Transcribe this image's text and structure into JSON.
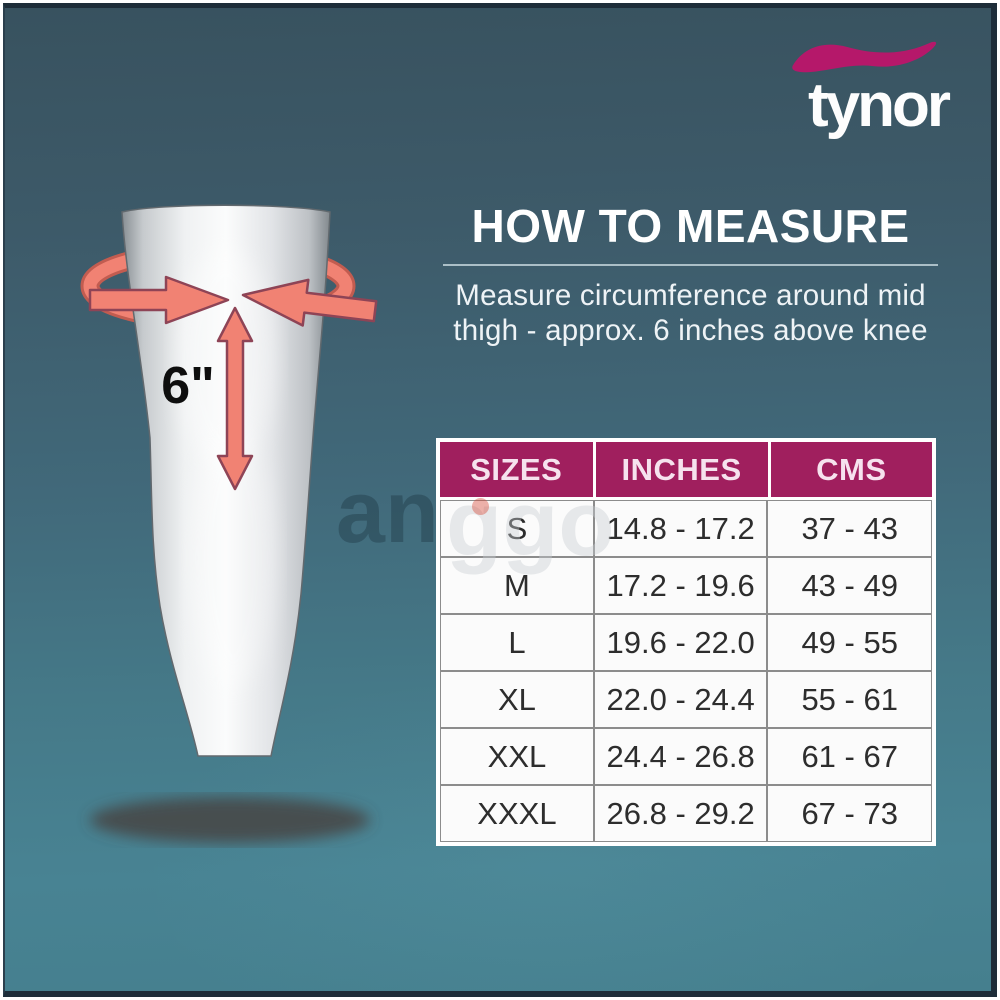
{
  "brand": {
    "name": "tynor",
    "swoosh_color": "#b5186a"
  },
  "instructions": {
    "title": "HOW TO MEASURE",
    "line1": "Measure circumference around mid",
    "line2": "thigh - approx. 6 inches above knee"
  },
  "illustration": {
    "measurement_label": "6\"",
    "arrow_color": "#f18273",
    "arrow_outline": "#8e4456",
    "band_color": "#ef8070"
  },
  "size_chart": {
    "columns": [
      "SIZES",
      "INCHES",
      "CMS"
    ],
    "rows": [
      [
        "S",
        "14.8 - 17.2",
        "37 - 43"
      ],
      [
        "M",
        "17.2 - 19.6",
        "43 - 49"
      ],
      [
        "L",
        "19.6 - 22.0",
        "49 - 55"
      ],
      [
        "XL",
        "22.0 - 24.4",
        "55 - 61"
      ],
      [
        "XXL",
        "24.4 - 26.8",
        "61 - 67"
      ],
      [
        "XXXL",
        "26.8 - 29.2",
        "67 - 73"
      ]
    ],
    "header_bg": "#a01f5e"
  },
  "watermark": {
    "left": "an",
    "right": "ggo"
  },
  "chart_data": {
    "type": "table",
    "title": "HOW TO MEASURE",
    "columns": [
      "SIZES",
      "INCHES",
      "CMS"
    ],
    "rows": [
      [
        "S",
        "14.8 - 17.2",
        "37 - 43"
      ],
      [
        "M",
        "17.2 - 19.6",
        "43 - 49"
      ],
      [
        "L",
        "19.6 - 22.0",
        "49 - 55"
      ],
      [
        "XL",
        "22.0 - 24.4",
        "55 - 61"
      ],
      [
        "XXL",
        "24.4 - 26.8",
        "61 - 67"
      ],
      [
        "XXXL",
        "26.8 - 29.2",
        "67 - 73"
      ]
    ]
  }
}
